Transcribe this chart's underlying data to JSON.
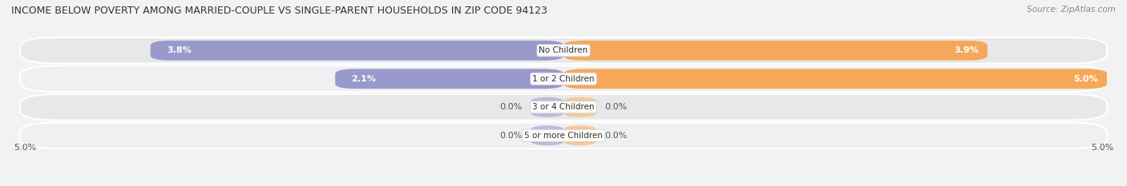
{
  "title": "INCOME BELOW POVERTY AMONG MARRIED-COUPLE VS SINGLE-PARENT HOUSEHOLDS IN ZIP CODE 94123",
  "source": "Source: ZipAtlas.com",
  "categories": [
    "No Children",
    "1 or 2 Children",
    "3 or 4 Children",
    "5 or more Children"
  ],
  "married_values": [
    3.8,
    2.1,
    0.0,
    0.0
  ],
  "single_values": [
    3.9,
    5.0,
    0.0,
    0.0
  ],
  "max_val": 5.0,
  "married_color": "#9999cc",
  "married_color_light": "#bbbbdd",
  "single_color": "#f5a85a",
  "single_color_light": "#f5c99a",
  "bg_color": "#f2f2f2",
  "row_color_odd": "#e8e8ea",
  "row_color_even": "#f0f0f2",
  "title_fontsize": 9,
  "source_fontsize": 7.5,
  "value_fontsize": 8,
  "category_fontsize": 7.5,
  "axis_label_fontsize": 8,
  "left_axis_label": "5.0%",
  "right_axis_label": "5.0%"
}
